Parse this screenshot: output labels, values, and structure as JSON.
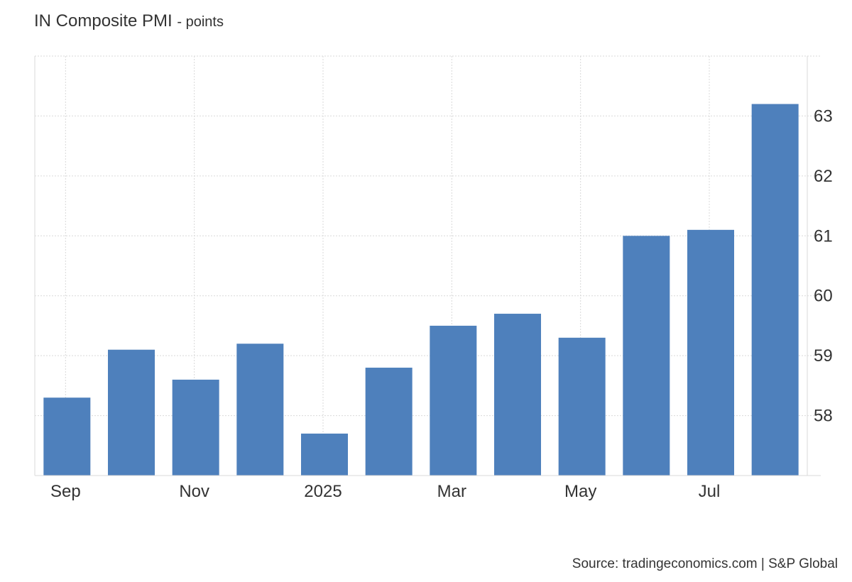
{
  "title": "IN Composite PMI",
  "title_unit": "- points",
  "source": "Source: tradingeconomics.com | S&P Global",
  "chart_data": {
    "type": "bar",
    "categories": [
      "Sep 2024",
      "Oct 2024",
      "Nov 2024",
      "Dec 2024",
      "Jan 2025",
      "Feb 2025",
      "Mar 2025",
      "Apr 2025",
      "May 2025",
      "Jun 2025",
      "Jul 2025",
      "Aug 2025"
    ],
    "values": [
      58.3,
      59.1,
      58.6,
      59.2,
      57.7,
      58.8,
      59.5,
      59.7,
      59.3,
      61.0,
      61.1,
      63.2
    ],
    "x_tick_labels": [
      "Sep",
      "Nov",
      "2025",
      "Mar",
      "May",
      "Jul"
    ],
    "y_ticks": [
      58,
      59,
      60,
      61,
      62,
      63
    ],
    "ylim": [
      57.0,
      64.0
    ],
    "y_axis_side": "right",
    "grid": true,
    "bar_color": "#4e80bc",
    "legend": "none"
  }
}
